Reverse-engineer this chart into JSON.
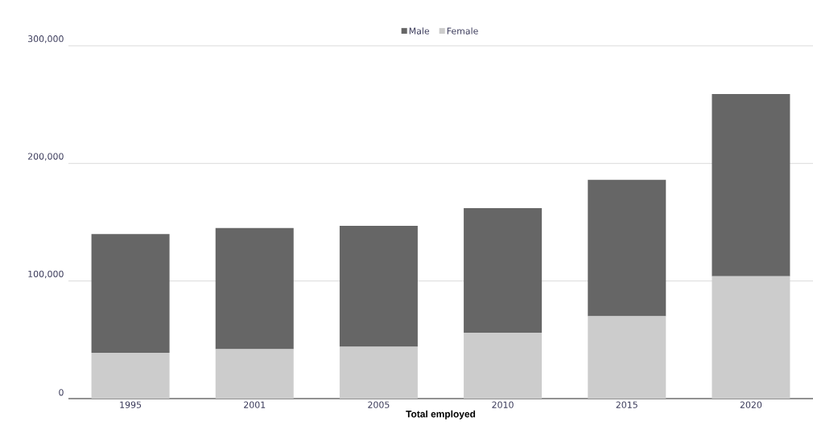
{
  "chart_data": {
    "type": "bar",
    "stacked": true,
    "xlabel": "Total employed",
    "categories": [
      "1995",
      "2001",
      "2005",
      "2010",
      "2015",
      "2020"
    ],
    "series": [
      {
        "name": "Female",
        "color": "#cccccc",
        "values": [
          39000,
          42000,
          44000,
          56000,
          70000,
          104000
        ]
      },
      {
        "name": "Male",
        "color": "#666666",
        "values": [
          101000,
          103000,
          103000,
          106000,
          116000,
          155000
        ]
      }
    ],
    "ylim": [
      0,
      300000
    ],
    "yticks": [
      {
        "value": 0,
        "label": "0"
      },
      {
        "value": 100000,
        "label": "100,000"
      },
      {
        "value": 200000,
        "label": "200,000"
      },
      {
        "value": 300000,
        "label": "300,000"
      }
    ],
    "grid": "y",
    "legend": "top"
  }
}
